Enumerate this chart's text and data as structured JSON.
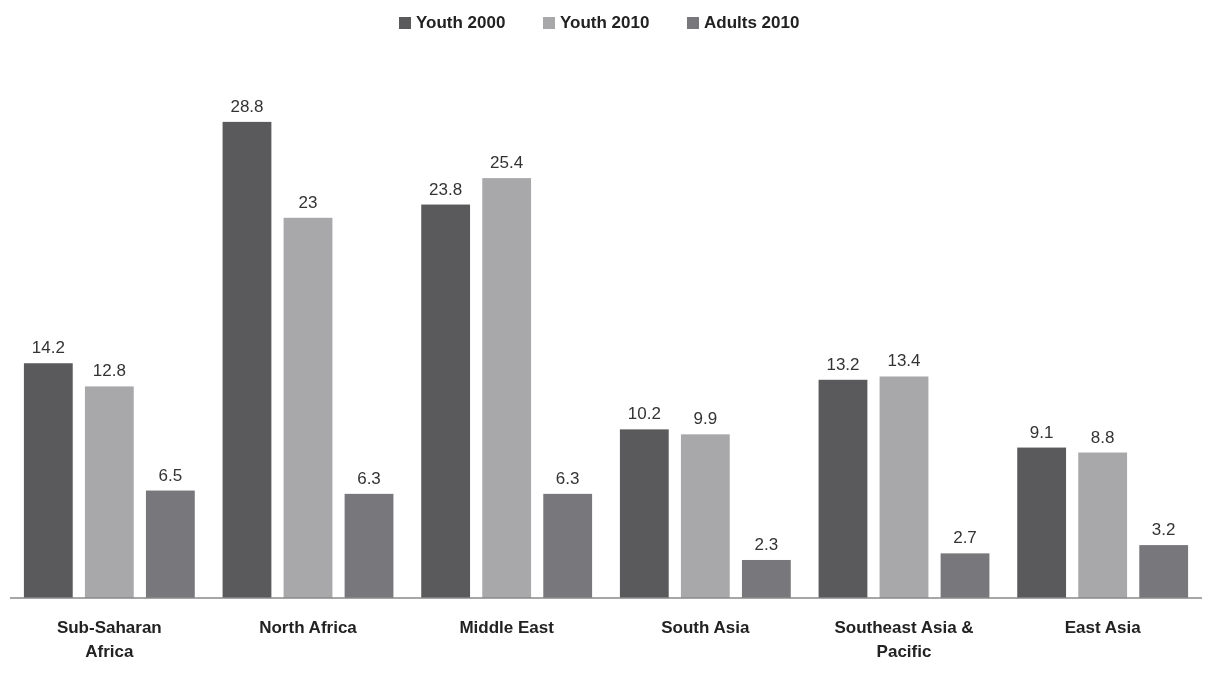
{
  "chart_data": {
    "type": "bar",
    "categories": [
      "Sub-Saharan Africa",
      "North Africa",
      "Middle East",
      "South Asia",
      "Southeast Asia & Pacific",
      "East Asia"
    ],
    "series": [
      {
        "name": "Youth 2000",
        "color": "#5a5a5c",
        "values": [
          14.2,
          28.8,
          23.8,
          10.2,
          13.2,
          9.1
        ]
      },
      {
        "name": "Youth 2010",
        "color": "#a8a8aa",
        "values": [
          12.8,
          23,
          25.4,
          9.9,
          13.4,
          8.8
        ]
      },
      {
        "name": "Adults 2010",
        "color": "#78787c",
        "values": [
          6.5,
          6.3,
          6.3,
          2.3,
          2.7,
          3.2
        ]
      }
    ],
    "data_labels": true,
    "legend": "top"
  }
}
